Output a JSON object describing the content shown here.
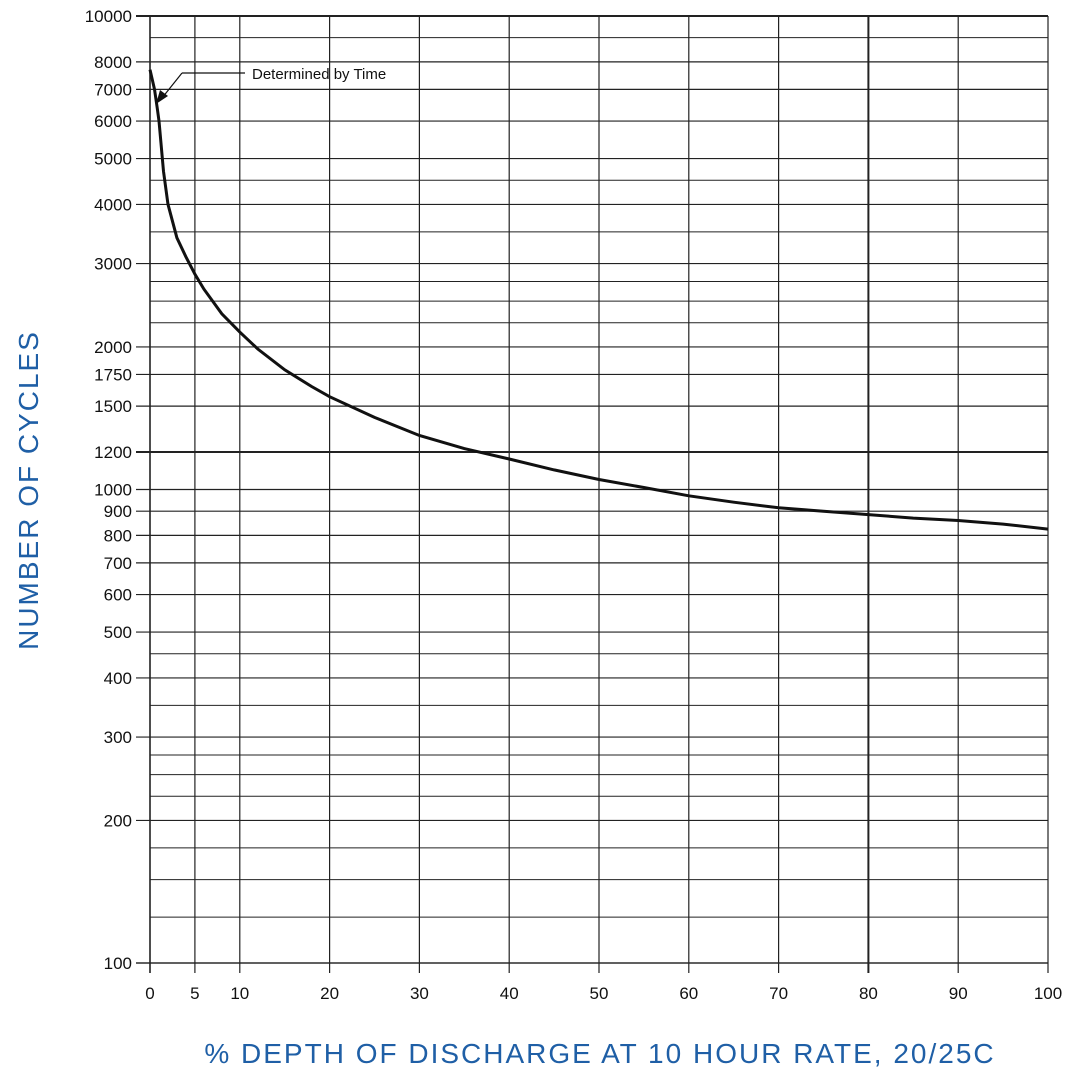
{
  "chart_data": {
    "type": "line",
    "title": "",
    "xlabel": "% DEPTH OF DISCHARGE AT 10 HOUR RATE, 20/25C",
    "ylabel": "NUMBER OF CYCLES",
    "x_scale": "linear",
    "y_scale": "log",
    "xlim": [
      0,
      100
    ],
    "ylim": [
      100,
      10000
    ],
    "x_ticks": [
      0,
      5,
      10,
      20,
      30,
      40,
      50,
      60,
      70,
      80,
      90,
      100
    ],
    "x_tick_labels": [
      "0",
      "5",
      "10",
      "20",
      "30",
      "40",
      "50",
      "60",
      "70",
      "80",
      "90",
      "100"
    ],
    "y_ticks": [
      100,
      200,
      300,
      400,
      500,
      600,
      700,
      800,
      900,
      1000,
      1200,
      1500,
      1750,
      2000,
      3000,
      4000,
      5000,
      6000,
      7000,
      8000,
      10000
    ],
    "y_tick_labels": [
      "100",
      "200",
      "300",
      "400",
      "500",
      "600",
      "700",
      "800",
      "900",
      "1000",
      "1200",
      "1500",
      "1750",
      "2000",
      "3000",
      "4000",
      "5000",
      "6000",
      "7000",
      "8000",
      "10000"
    ],
    "minor_y_gridlines": [
      125,
      150,
      175,
      225,
      250,
      275,
      350,
      450,
      2250,
      2500,
      2750,
      3500,
      4500,
      9000
    ],
    "grid": true,
    "colors": {
      "curve": "#111111",
      "axis_title": "#1f5fa6",
      "grid": "#222222"
    },
    "series": [
      {
        "x": [
          0,
          0.5,
          0.8,
          1,
          1.5,
          2,
          3,
          4,
          5,
          6,
          8,
          10,
          12,
          15,
          18,
          20,
          25,
          30,
          35,
          40,
          45,
          50,
          55,
          60,
          65,
          70,
          75,
          80,
          85,
          90,
          95,
          100
        ],
        "values": [
          7700,
          7000,
          6400,
          6000,
          4700,
          4000,
          3400,
          3100,
          2850,
          2650,
          2350,
          2150,
          1980,
          1790,
          1650,
          1570,
          1420,
          1300,
          1220,
          1160,
          1100,
          1050,
          1010,
          970,
          940,
          915,
          900,
          885,
          870,
          860,
          845,
          825
        ]
      }
    ],
    "annotations": [
      {
        "text": "Determined by Time",
        "points_to": [
          0.5,
          7000
        ]
      }
    ]
  }
}
